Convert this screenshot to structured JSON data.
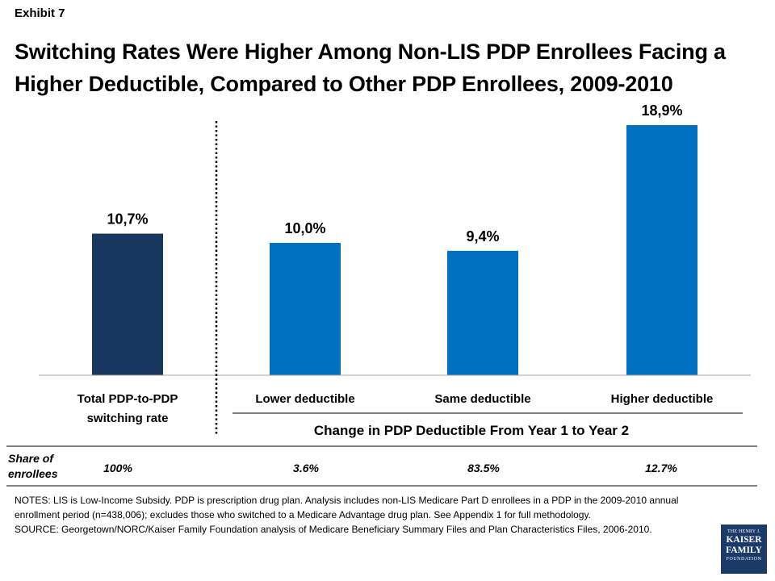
{
  "header": {
    "exhibit": "Exhibit 7",
    "title": "Switching Rates Were Higher Among Non-LIS PDP Enrollees Facing a Higher Deductible, Compared to Other PDP Enrollees, 2009-2010"
  },
  "chart_data": {
    "type": "bar",
    "categories": [
      "Total PDP-to-PDP switching rate",
      "Lower deductible",
      "Same deductible",
      "Higher deductible"
    ],
    "values": [
      10.7,
      10.0,
      9.4,
      18.9
    ],
    "data_labels": [
      "10,7%",
      "10,0%",
      "9,4%",
      "18,9%"
    ],
    "ylim": [
      0,
      20
    ],
    "grid": false,
    "group_label": "Change in PDP Deductible From Year 1 to Year 2",
    "colors": [
      "#17375e",
      "#0070c0",
      "#0070c0",
      "#0070c0"
    ]
  },
  "share": {
    "label": "Share of enrollees",
    "values": [
      "100%",
      "3.6%",
      "83.5%",
      "12.7%"
    ]
  },
  "notes": {
    "notes": "NOTES: LIS is Low-Income Subsidy. PDP is prescription drug plan. Analysis includes non-LIS Medicare Part D enrollees in a PDP in the 2009-2010 annual enrollment period (n=438,006); excludes those who switched to a Medicare Advantage drug plan. See Appendix 1 for full methodology.",
    "source": "SOURCE: Georgetown/NORC/Kaiser Family Foundation analysis of Medicare Beneficiary Summary Files and Plan Characteristics Files, 2006-2010."
  },
  "logo": {
    "line1": "THE HENRY J.",
    "line2": "KAISER",
    "line3": "FAMILY",
    "line4": "FOUNDATION"
  }
}
